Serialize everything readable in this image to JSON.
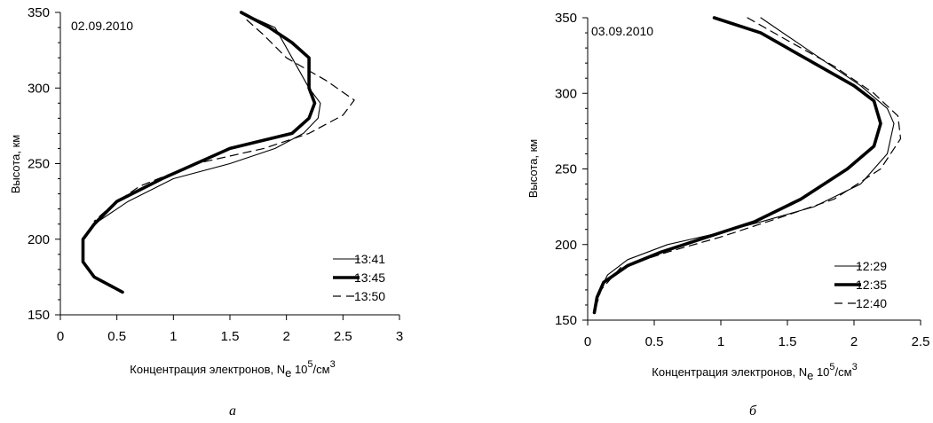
{
  "chart_data": [
    {
      "type": "line",
      "panel": "left",
      "date": "02.09.2010",
      "caption": "а",
      "xlabel": "Концентрация электронов, N",
      "xlabel_sub": "e",
      "xlabel_unit": " 10",
      "xlabel_sup": "5",
      "xlabel_unit2": "/см",
      "xlabel_sup2": "3",
      "ylabel": "Высота, км",
      "xlim": [
        0,
        3
      ],
      "ylim": [
        150,
        350
      ],
      "xticks": [
        0,
        0.5,
        1,
        1.5,
        2,
        2.5,
        3
      ],
      "xtick_labels": [
        "0",
        "0.5",
        "1",
        "1.5",
        "2",
        "2.5",
        "3"
      ],
      "yticks": [
        150,
        200,
        250,
        300,
        350
      ],
      "ytick_labels": [
        "150",
        "200",
        "250",
        "300",
        "350"
      ],
      "legend_position": "bottom-right",
      "series": [
        {
          "name": "13:41",
          "style": "thin",
          "color": "#000000",
          "x": [
            1.6,
            1.9,
            2.05,
            2.2,
            2.3,
            2.28,
            2.15,
            1.9,
            1.5,
            1.0,
            0.6,
            0.3,
            0.2,
            0.2,
            0.3,
            0.55
          ],
          "y": [
            350,
            340,
            320,
            300,
            290,
            280,
            270,
            260,
            250,
            240,
            225,
            210,
            200,
            185,
            175,
            165
          ]
        },
        {
          "name": "13:45",
          "style": "thick",
          "color": "#000000",
          "x": [
            1.6,
            1.85,
            2.05,
            2.2,
            2.2,
            2.25,
            2.2,
            2.05,
            1.5,
            0.9,
            0.5,
            0.3,
            0.2,
            0.2,
            0.3,
            0.55
          ],
          "y": [
            350,
            340,
            330,
            320,
            300,
            290,
            280,
            270,
            260,
            240,
            225,
            210,
            200,
            185,
            175,
            165
          ]
        },
        {
          "name": "13:50",
          "style": "dashed",
          "color": "#000000",
          "x": [
            1.65,
            1.8,
            2.0,
            2.35,
            2.6,
            2.5,
            2.2,
            1.8,
            1.2,
            0.7,
            0.45,
            0.3
          ],
          "y": [
            345,
            335,
            320,
            305,
            292,
            282,
            270,
            260,
            250,
            235,
            222,
            212
          ]
        }
      ]
    },
    {
      "type": "line",
      "panel": "right",
      "date": "03.09.2010",
      "caption": "б",
      "xlabel": "Концентрация электронов, N",
      "xlabel_sub": "e",
      "xlabel_unit": " 10",
      "xlabel_sup": "5",
      "xlabel_unit2": "/см",
      "xlabel_sup2": "3",
      "ylabel": "Высота, км",
      "xlim": [
        0,
        2.5
      ],
      "ylim": [
        150,
        350
      ],
      "xticks": [
        0,
        0.5,
        1,
        1.5,
        2,
        2.5
      ],
      "xtick_labels": [
        "0",
        "0.5",
        "1",
        "1.5",
        "2",
        "2.5"
      ],
      "yticks": [
        150,
        200,
        250,
        300,
        350
      ],
      "ytick_labels": [
        "150",
        "200",
        "250",
        "300",
        "350"
      ],
      "legend_position": "bottom-right",
      "series": [
        {
          "name": "12:29",
          "style": "thin",
          "color": "#000000",
          "x": [
            1.3,
            1.55,
            1.8,
            2.05,
            2.25,
            2.3,
            2.25,
            2.05,
            1.7,
            1.3,
            1.0,
            0.6,
            0.3,
            0.15,
            0.08,
            0.05
          ],
          "y": [
            350,
            335,
            320,
            305,
            290,
            280,
            260,
            240,
            225,
            215,
            208,
            200,
            190,
            180,
            168,
            155
          ]
        },
        {
          "name": "12:35",
          "style": "thick",
          "color": "#000000",
          "x": [
            0.95,
            1.3,
            1.7,
            2.0,
            2.15,
            2.2,
            2.15,
            1.95,
            1.6,
            1.25,
            0.9,
            0.55,
            0.3,
            0.12,
            0.07,
            0.05
          ],
          "y": [
            350,
            340,
            320,
            305,
            295,
            280,
            265,
            250,
            230,
            215,
            205,
            195,
            186,
            175,
            165,
            155
          ]
        },
        {
          "name": "12:40",
          "style": "dashed",
          "color": "#000000",
          "x": [
            1.2,
            1.5,
            1.85,
            2.15,
            2.33,
            2.35,
            2.2,
            1.85,
            1.45,
            1.0,
            0.6,
            0.25,
            0.1,
            0.05
          ],
          "y": [
            350,
            335,
            318,
            300,
            285,
            270,
            250,
            230,
            218,
            205,
            195,
            185,
            170,
            155
          ]
        }
      ]
    }
  ]
}
